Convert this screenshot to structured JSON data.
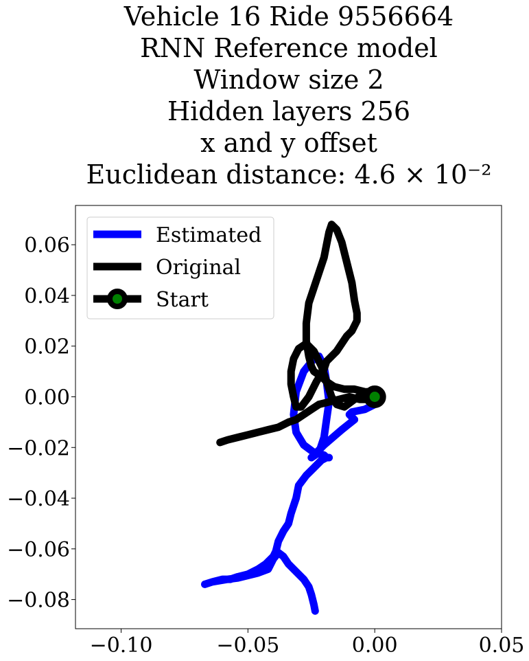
{
  "chart_data": {
    "type": "line",
    "title_lines": [
      "Vehicle 16 Ride 9556664",
      "RNN Reference model",
      "Window size 2",
      "Hidden layers 256",
      "x and y offset",
      "Euclidean distance: 4.6 × 10⁻²"
    ],
    "xlabel": "",
    "ylabel": "",
    "xlim": [
      -0.118,
      0.05
    ],
    "ylim": [
      -0.0915,
      0.0755
    ],
    "x_ticks": [
      -0.1,
      -0.05,
      0.0,
      0.05
    ],
    "x_tick_labels": [
      "−0.10",
      "−0.05",
      "0.00",
      "0.05"
    ],
    "y_ticks": [
      0.06,
      0.04,
      0.02,
      0.0,
      -0.02,
      -0.04,
      -0.06,
      -0.08
    ],
    "y_tick_labels": [
      "0.06",
      "0.04",
      "0.02",
      "0.00",
      "−0.02",
      "−0.04",
      "−0.06",
      "−0.08"
    ],
    "grid": false,
    "legend_position": "top-left",
    "series": [
      {
        "name": "Estimated",
        "color": "#0000ff",
        "x": [
          0.0,
          -0.004,
          -0.009,
          -0.01,
          -0.008,
          -0.013,
          -0.02,
          -0.025,
          -0.022,
          -0.02,
          -0.019,
          -0.018,
          -0.019,
          -0.02,
          -0.022,
          -0.024,
          -0.028,
          -0.031,
          -0.032,
          -0.031,
          -0.028,
          -0.024,
          -0.02,
          -0.019,
          -0.018,
          -0.019,
          -0.021,
          -0.024,
          -0.027,
          -0.03,
          -0.031,
          -0.033,
          -0.034,
          -0.036,
          -0.038,
          -0.039,
          -0.04,
          -0.043,
          -0.046,
          -0.05,
          -0.054,
          -0.057,
          -0.06,
          -0.064,
          -0.067,
          -0.064,
          -0.058,
          -0.054,
          -0.05,
          -0.046,
          -0.042,
          -0.04,
          -0.038,
          -0.036,
          -0.034,
          -0.031,
          -0.028,
          -0.026,
          -0.025,
          -0.024,
          -0.0235
        ],
        "y": [
          -0.003,
          -0.005,
          -0.006,
          -0.007,
          -0.009,
          -0.013,
          -0.019,
          -0.024,
          -0.022,
          -0.016,
          -0.009,
          -0.002,
          0.006,
          0.012,
          0.016,
          0.015,
          0.01,
          0.002,
          -0.007,
          -0.014,
          -0.019,
          -0.022,
          -0.023,
          -0.024,
          -0.024,
          -0.024,
          -0.025,
          -0.028,
          -0.031,
          -0.035,
          -0.04,
          -0.046,
          -0.05,
          -0.053,
          -0.057,
          -0.061,
          -0.063,
          -0.066,
          -0.068,
          -0.07,
          -0.071,
          -0.072,
          -0.072,
          -0.073,
          -0.074,
          -0.073,
          -0.072,
          -0.0715,
          -0.0705,
          -0.0695,
          -0.068,
          -0.064,
          -0.0615,
          -0.063,
          -0.066,
          -0.069,
          -0.072,
          -0.075,
          -0.078,
          -0.082,
          -0.0845
        ]
      },
      {
        "name": "Original",
        "color": "#000000",
        "x": [
          0.0,
          -0.004,
          -0.008,
          -0.012,
          -0.016,
          -0.019,
          -0.021,
          -0.024,
          -0.025,
          -0.026,
          -0.027,
          -0.027,
          -0.026,
          -0.024,
          -0.022,
          -0.02,
          -0.019,
          -0.018,
          -0.017,
          -0.015,
          -0.013,
          -0.011,
          -0.009,
          -0.008,
          -0.007,
          -0.007,
          -0.008,
          -0.009,
          -0.011,
          -0.013,
          -0.015,
          -0.017,
          -0.019,
          -0.02,
          -0.023,
          -0.026,
          -0.029,
          -0.031,
          -0.032,
          -0.033,
          -0.033,
          -0.032,
          -0.03,
          -0.027,
          -0.024,
          -0.021,
          -0.019,
          -0.017,
          -0.015,
          -0.012,
          -0.008,
          -0.005,
          -0.003,
          -0.001,
          0.0,
          -0.003,
          -0.006,
          -0.01,
          -0.014,
          -0.018,
          -0.022,
          -0.025,
          -0.028,
          -0.031,
          -0.034,
          -0.038,
          -0.042,
          -0.046,
          -0.05,
          -0.054,
          -0.058,
          -0.061
        ],
        "y": [
          0.0,
          0.002,
          0.003,
          0.003,
          0.004,
          0.006,
          0.008,
          0.01,
          0.012,
          0.016,
          0.022,
          0.029,
          0.037,
          0.043,
          0.049,
          0.055,
          0.06,
          0.065,
          0.068,
          0.066,
          0.061,
          0.053,
          0.045,
          0.038,
          0.033,
          0.03,
          0.028,
          0.026,
          0.024,
          0.021,
          0.018,
          0.016,
          0.014,
          0.011,
          0.006,
          0.0,
          -0.004,
          -0.004,
          0.0,
          0.005,
          0.01,
          0.015,
          0.019,
          0.021,
          0.018,
          0.012,
          0.006,
          0.0,
          -0.003,
          -0.004,
          -0.001,
          0.001,
          0.002,
          0.002,
          0.0,
          -0.001,
          -0.001,
          0.0,
          -0.001,
          -0.002,
          -0.003,
          -0.005,
          -0.007,
          -0.009,
          -0.01,
          -0.012,
          -0.013,
          -0.014,
          -0.015,
          -0.016,
          -0.017,
          -0.018
        ]
      },
      {
        "name": "Start",
        "color": "#008000",
        "x": [
          0.0
        ],
        "y": [
          0.0
        ]
      }
    ]
  }
}
